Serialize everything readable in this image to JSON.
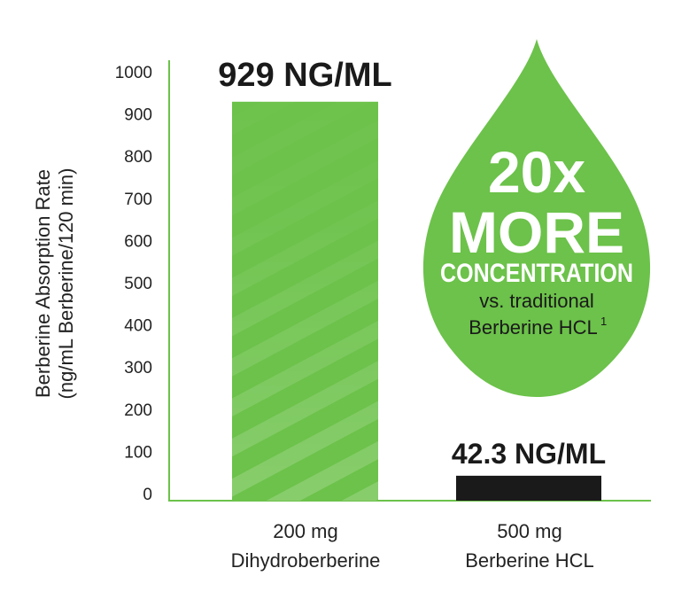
{
  "chart_data": {
    "type": "bar",
    "categories_line1": [
      "200 mg",
      "500 mg"
    ],
    "categories_line2": [
      "Dihydroberberine",
      "Berberine HCL"
    ],
    "values": [
      929,
      42.3
    ],
    "value_labels": [
      "929 NG/ML",
      "42.3 NG/ML"
    ],
    "ylabel_line1": "Berberine Absorption Rate",
    "ylabel_line2": "(ng/mL Berberine/120 min)",
    "ylim": [
      0,
      1000
    ],
    "yticks": [
      "0",
      "100",
      "200",
      "300",
      "400",
      "500",
      "600",
      "700",
      "800",
      "900",
      "1000"
    ],
    "grid": false,
    "colors": {
      "bar1": "#6cc24a",
      "bar2": "#1a1a1a",
      "axis": "#6cc24a",
      "drop": "#6cc24a"
    },
    "callout": {
      "line1": "20x",
      "line2": "MORE",
      "line3": "CONCENTRATION",
      "line4": "vs. traditional",
      "line5": "Berberine HCL",
      "footnote": "1"
    }
  }
}
